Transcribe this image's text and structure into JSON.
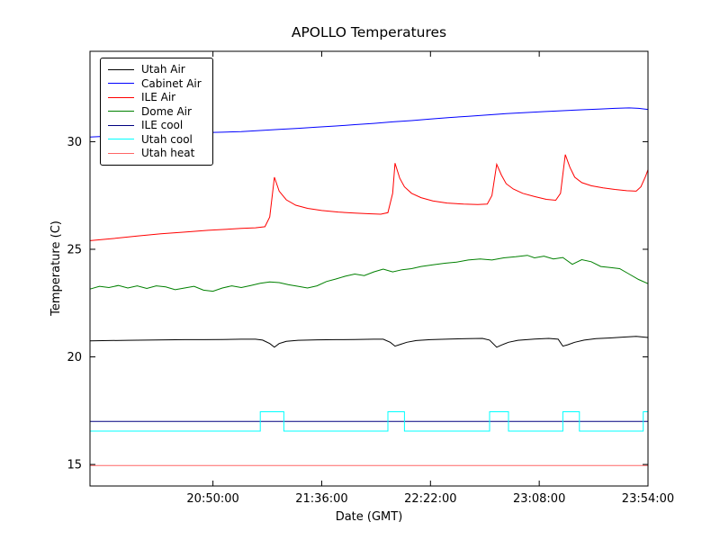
{
  "chart_data": {
    "type": "line",
    "title": "APOLLO Temperatures",
    "xlabel": "Date (GMT)",
    "ylabel": "Temperature (C)",
    "xlim": [
      0,
      236
    ],
    "ylim": [
      14.0,
      34.2
    ],
    "x_axis_note": "x values are minutes; tick times shown below",
    "xticks": [
      {
        "v": 52,
        "label": "20:50:00"
      },
      {
        "v": 98,
        "label": "21:36:00"
      },
      {
        "v": 144,
        "label": "22:22:00"
      },
      {
        "v": 190,
        "label": "23:08:00"
      },
      {
        "v": 236,
        "label": "23:54:00"
      }
    ],
    "yticks": [
      15,
      20,
      25,
      30
    ],
    "grid": false,
    "legend_position": "upper left",
    "series": [
      {
        "name": "Utah Air",
        "color": "#000000",
        "points": [
          [
            0,
            20.74
          ],
          [
            8,
            20.76
          ],
          [
            16,
            20.77
          ],
          [
            24,
            20.78
          ],
          [
            32,
            20.79
          ],
          [
            40,
            20.8
          ],
          [
            48,
            20.8
          ],
          [
            56,
            20.81
          ],
          [
            64,
            20.82
          ],
          [
            70,
            20.82
          ],
          [
            73,
            20.78
          ],
          [
            76,
            20.62
          ],
          [
            78,
            20.45
          ],
          [
            80,
            20.62
          ],
          [
            83,
            20.72
          ],
          [
            88,
            20.77
          ],
          [
            96,
            20.79
          ],
          [
            104,
            20.8
          ],
          [
            112,
            20.81
          ],
          [
            120,
            20.82
          ],
          [
            124,
            20.82
          ],
          [
            127,
            20.68
          ],
          [
            129,
            20.5
          ],
          [
            131,
            20.57
          ],
          [
            134,
            20.68
          ],
          [
            138,
            20.76
          ],
          [
            144,
            20.8
          ],
          [
            152,
            20.83
          ],
          [
            160,
            20.85
          ],
          [
            166,
            20.86
          ],
          [
            169,
            20.78
          ],
          [
            172,
            20.45
          ],
          [
            174,
            20.55
          ],
          [
            177,
            20.68
          ],
          [
            181,
            20.77
          ],
          [
            188,
            20.83
          ],
          [
            194,
            20.86
          ],
          [
            198,
            20.82
          ],
          [
            200,
            20.5
          ],
          [
            202,
            20.56
          ],
          [
            205,
            20.68
          ],
          [
            209,
            20.78
          ],
          [
            214,
            20.85
          ],
          [
            220,
            20.88
          ],
          [
            226,
            20.92
          ],
          [
            231,
            20.95
          ],
          [
            236,
            20.9
          ]
        ]
      },
      {
        "name": "Cabinet Air",
        "color": "#0000ff",
        "points": [
          [
            0,
            30.22
          ],
          [
            8,
            30.26
          ],
          [
            16,
            30.3
          ],
          [
            24,
            30.33
          ],
          [
            32,
            30.36
          ],
          [
            40,
            30.4
          ],
          [
            44,
            30.38
          ],
          [
            48,
            30.42
          ],
          [
            56,
            30.44
          ],
          [
            64,
            30.47
          ],
          [
            72,
            30.52
          ],
          [
            80,
            30.57
          ],
          [
            88,
            30.62
          ],
          [
            96,
            30.68
          ],
          [
            104,
            30.73
          ],
          [
            112,
            30.79
          ],
          [
            120,
            30.85
          ],
          [
            128,
            30.92
          ],
          [
            136,
            30.98
          ],
          [
            144,
            31.05
          ],
          [
            152,
            31.12
          ],
          [
            160,
            31.18
          ],
          [
            168,
            31.24
          ],
          [
            176,
            31.3
          ],
          [
            184,
            31.35
          ],
          [
            192,
            31.4
          ],
          [
            200,
            31.44
          ],
          [
            208,
            31.48
          ],
          [
            216,
            31.52
          ],
          [
            222,
            31.55
          ],
          [
            228,
            31.57
          ],
          [
            232,
            31.55
          ],
          [
            236,
            31.5
          ]
        ]
      },
      {
        "name": "ILE Air",
        "color": "#ff0000",
        "points": [
          [
            0,
            25.4
          ],
          [
            10,
            25.5
          ],
          [
            20,
            25.62
          ],
          [
            30,
            25.72
          ],
          [
            40,
            25.8
          ],
          [
            50,
            25.88
          ],
          [
            58,
            25.93
          ],
          [
            64,
            25.97
          ],
          [
            70,
            26.0
          ],
          [
            74,
            26.05
          ],
          [
            76,
            26.5
          ],
          [
            78,
            28.35
          ],
          [
            80,
            27.7
          ],
          [
            83,
            27.3
          ],
          [
            87,
            27.05
          ],
          [
            92,
            26.9
          ],
          [
            98,
            26.8
          ],
          [
            105,
            26.73
          ],
          [
            112,
            26.68
          ],
          [
            118,
            26.65
          ],
          [
            123,
            26.63
          ],
          [
            126,
            26.7
          ],
          [
            128,
            27.6
          ],
          [
            129,
            29.0
          ],
          [
            131,
            28.3
          ],
          [
            133,
            27.9
          ],
          [
            136,
            27.6
          ],
          [
            140,
            27.4
          ],
          [
            145,
            27.25
          ],
          [
            151,
            27.15
          ],
          [
            158,
            27.1
          ],
          [
            164,
            27.08
          ],
          [
            168,
            27.1
          ],
          [
            170,
            27.5
          ],
          [
            172,
            28.95
          ],
          [
            174,
            28.45
          ],
          [
            176,
            28.05
          ],
          [
            179,
            27.8
          ],
          [
            183,
            27.6
          ],
          [
            188,
            27.45
          ],
          [
            193,
            27.32
          ],
          [
            197,
            27.28
          ],
          [
            199,
            27.6
          ],
          [
            201,
            29.4
          ],
          [
            203,
            28.8
          ],
          [
            205,
            28.35
          ],
          [
            208,
            28.1
          ],
          [
            212,
            27.95
          ],
          [
            217,
            27.85
          ],
          [
            222,
            27.78
          ],
          [
            227,
            27.72
          ],
          [
            231,
            27.7
          ],
          [
            233,
            27.9
          ],
          [
            235,
            28.4
          ],
          [
            236,
            28.7
          ]
        ]
      },
      {
        "name": "Dome Air",
        "color": "#008000",
        "points": [
          [
            0,
            23.15
          ],
          [
            4,
            23.28
          ],
          [
            8,
            23.22
          ],
          [
            12,
            23.32
          ],
          [
            16,
            23.2
          ],
          [
            20,
            23.3
          ],
          [
            24,
            23.18
          ],
          [
            28,
            23.3
          ],
          [
            32,
            23.25
          ],
          [
            36,
            23.12
          ],
          [
            40,
            23.2
          ],
          [
            44,
            23.28
          ],
          [
            48,
            23.1
          ],
          [
            52,
            23.05
          ],
          [
            56,
            23.2
          ],
          [
            60,
            23.3
          ],
          [
            64,
            23.22
          ],
          [
            68,
            23.32
          ],
          [
            72,
            23.42
          ],
          [
            76,
            23.48
          ],
          [
            80,
            23.45
          ],
          [
            84,
            23.35
          ],
          [
            88,
            23.28
          ],
          [
            92,
            23.2
          ],
          [
            96,
            23.3
          ],
          [
            100,
            23.5
          ],
          [
            104,
            23.62
          ],
          [
            108,
            23.75
          ],
          [
            112,
            23.85
          ],
          [
            116,
            23.78
          ],
          [
            120,
            23.95
          ],
          [
            124,
            24.08
          ],
          [
            128,
            23.95
          ],
          [
            132,
            24.05
          ],
          [
            136,
            24.1
          ],
          [
            140,
            24.2
          ],
          [
            145,
            24.28
          ],
          [
            150,
            24.35
          ],
          [
            155,
            24.4
          ],
          [
            160,
            24.5
          ],
          [
            165,
            24.55
          ],
          [
            170,
            24.5
          ],
          [
            175,
            24.6
          ],
          [
            180,
            24.65
          ],
          [
            185,
            24.72
          ],
          [
            188,
            24.6
          ],
          [
            192,
            24.68
          ],
          [
            196,
            24.55
          ],
          [
            200,
            24.62
          ],
          [
            204,
            24.3
          ],
          [
            208,
            24.52
          ],
          [
            212,
            24.42
          ],
          [
            216,
            24.2
          ],
          [
            220,
            24.15
          ],
          [
            224,
            24.1
          ],
          [
            228,
            23.85
          ],
          [
            232,
            23.6
          ],
          [
            236,
            23.4
          ]
        ]
      },
      {
        "name": "ILE cool",
        "color": "#000080",
        "points": [
          [
            0,
            17.0
          ],
          [
            236,
            17.0
          ]
        ]
      },
      {
        "name": "Utah cool",
        "color": "#00ffff",
        "points": [
          [
            0,
            16.55
          ],
          [
            72,
            16.55
          ],
          [
            72,
            17.45
          ],
          [
            82,
            17.45
          ],
          [
            82,
            16.55
          ],
          [
            126,
            16.55
          ],
          [
            126,
            17.45
          ],
          [
            133,
            17.45
          ],
          [
            133,
            16.55
          ],
          [
            169,
            16.55
          ],
          [
            169,
            17.45
          ],
          [
            177,
            17.45
          ],
          [
            177,
            16.55
          ],
          [
            200,
            16.55
          ],
          [
            200,
            17.45
          ],
          [
            207,
            17.45
          ],
          [
            207,
            16.55
          ],
          [
            234,
            16.55
          ],
          [
            234,
            17.45
          ],
          [
            236,
            17.45
          ]
        ]
      },
      {
        "name": "Utah heat",
        "color": "#ff6666",
        "points": [
          [
            0,
            14.95
          ],
          [
            236,
            14.95
          ]
        ]
      }
    ]
  }
}
